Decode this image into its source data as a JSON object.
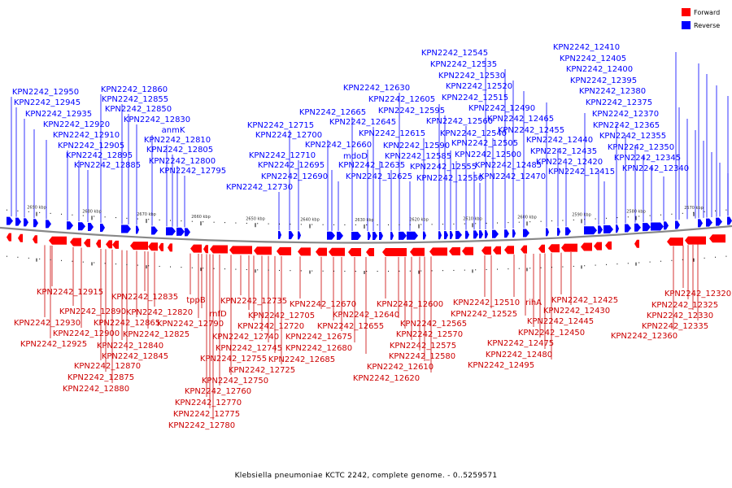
{
  "colors": {
    "forward": "#ff0000",
    "reverse": "#0000ff",
    "backbone": "#888888"
  },
  "legend": [
    {
      "label": "Forward",
      "color": "#ff0000"
    },
    {
      "label": "Reverse",
      "color": "#0000ff"
    }
  ],
  "caption": "Klebsiella pneumoniae KCTC 2242, complete genome. - 0..5259571",
  "ticks": [
    "2690 kbp",
    "2680 kbp",
    "2670 kbp",
    "2660 kbp",
    "2650 kbp",
    "2640 kbp",
    "2630 kbp",
    "2620 kbp",
    "2610 kbp",
    "2600 kbp",
    "2590 kbp",
    "2580 kbp",
    "2570 kbp"
  ],
  "reverse_labels": [
    "KPN2242_12950",
    "KPN2242_12945",
    "KPN2242_12935",
    "KPN2242_12920",
    "KPN2242_12910",
    "KPN2242_12905",
    "KPN2242_12895",
    "KPN2242_12885",
    "KPN2242_12860",
    "KPN2242_12855",
    "KPN2242_12850",
    "KPN2242_12830",
    "anmK",
    "KPN2242_12810",
    "KPN2242_12805",
    "KPN2242_12800",
    "KPN2242_12795",
    "KPN2242_12730",
    "KPN2242_12715",
    "KPN2242_12710",
    "KPN2242_12700",
    "KPN2242_12695",
    "KPN2242_12690",
    "KPN2242_12665",
    "KPN2242_12660",
    "KPN2242_12645",
    "mdoD",
    "KPN2242_12635",
    "KPN2242_12630",
    "KPN2242_12625",
    "KPN2242_12615",
    "KPN2242_12605",
    "KPN2242_12595",
    "KPN2242_12590",
    "KPN2242_12585",
    "KPN2242_12560",
    "KPN2242_12555",
    "KPN2242_12550",
    "KPN2242_12545",
    "KPN2242_12540",
    "KPN2242_12535",
    "KPN2242_12530",
    "KPN2242_12520",
    "KPN2242_12515",
    "KPN2242_12505",
    "KPN2242_12500",
    "KPN2242_12490",
    "KPN2242_12485",
    "KPN2242_12470",
    "KPN2242_12465",
    "KPN2242_12455",
    "KPN2242_12440",
    "KPN2242_12435",
    "KPN2242_12420",
    "KPN2242_12415",
    "KPN2242_12410",
    "KPN2242_12405",
    "KPN2242_12400",
    "KPN2242_12395",
    "KPN2242_12380",
    "KPN2242_12375",
    "KPN2242_12370",
    "KPN2242_12365",
    "KPN2242_12355",
    "KPN2242_12350",
    "KPN2242_12345",
    "KPN2242_12340"
  ],
  "forward_labels": [
    "KPN2242_12915",
    "KPN2242_12890",
    "KPN2242_12930",
    "KPN2242_12900",
    "KPN2242_12925",
    "KPN2242_12870",
    "KPN2242_12875",
    "KPN2242_12880",
    "KPN2242_12835",
    "KPN2242_12820",
    "KPN2242_12865",
    "KPN2242_12825",
    "KPN2242_12840",
    "KPN2242_12845",
    "tppB",
    "rnfD",
    "KPN2242_12790",
    "KPN2242_12770",
    "KPN2242_12775",
    "KPN2242_12780",
    "KPN2242_12760",
    "KPN2242_12750",
    "KPN2242_12735",
    "KPN2242_12705",
    "KPN2242_12720",
    "KPN2242_12740",
    "KPN2242_12745",
    "KPN2242_12755",
    "KPN2242_12725",
    "KPN2242_12670",
    "KPN2242_12640",
    "KPN2242_12655",
    "KPN2242_12675",
    "KPN2242_12680",
    "KPN2242_12685",
    "KPN2242_12600",
    "KPN2242_12565",
    "KPN2242_12570",
    "KPN2242_12575",
    "KPN2242_12580",
    "KPN2242_12610",
    "KPN2242_12620",
    "KPN2242_12510",
    "KPN2242_12525",
    "rihA",
    "KPN2242_12445",
    "KPN2242_12450",
    "KPN2242_12475",
    "KPN2242_12480",
    "KPN2242_12495",
    "KPN2242_12425",
    "KPN2242_12430",
    "KPN2242_12320",
    "KPN2242_12325",
    "KPN2242_12330",
    "KPN2242_12335",
    "KPN2242_12360"
  ]
}
